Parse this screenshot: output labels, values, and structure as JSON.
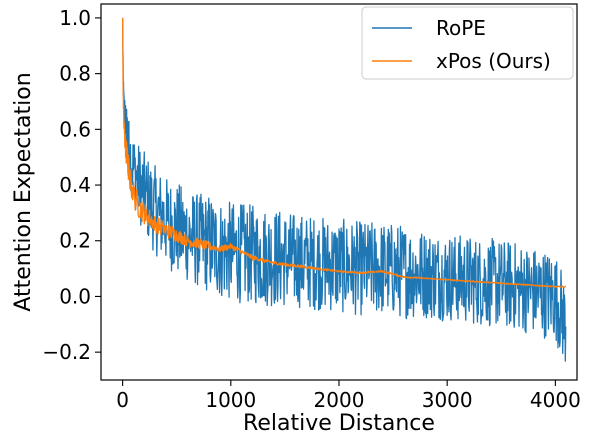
{
  "chart_data": {
    "type": "line",
    "xlabel": "Relative Distance",
    "ylabel": "Attention Expectation",
    "xlim": [
      -200,
      4200
    ],
    "ylim": [
      -0.3,
      1.05
    ],
    "xticks": [
      0,
      1000,
      2000,
      3000,
      4000
    ],
    "xtick_labels": [
      "0",
      "1000",
      "2000",
      "3000",
      "4000"
    ],
    "yticks": [
      -0.2,
      0.0,
      0.2,
      0.4,
      0.6,
      0.8,
      1.0
    ],
    "ytick_labels": [
      "−0.2",
      "0.0",
      "0.2",
      "0.4",
      "0.6",
      "0.8",
      "1.0"
    ],
    "grid": false,
    "legend_position": "top-right",
    "series": [
      {
        "name": "RoPE",
        "color": "#1f77b4",
        "x": [
          0,
          5,
          10,
          20,
          30,
          50,
          75,
          100,
          150,
          200,
          300,
          400,
          500,
          600,
          700,
          800,
          900,
          1000,
          1200,
          1400,
          1600,
          1800,
          2000,
          2200,
          2400,
          2600,
          2800,
          3000,
          3200,
          3400,
          3600,
          3800,
          4000,
          4096
        ],
        "values": [
          1.0,
          0.78,
          0.7,
          0.64,
          0.6,
          0.55,
          0.5,
          0.46,
          0.41,
          0.37,
          0.31,
          0.27,
          0.24,
          0.22,
          0.2,
          0.19,
          0.17,
          0.16,
          0.15,
          0.14,
          0.13,
          0.12,
          0.11,
          0.1,
          0.1,
          0.09,
          0.08,
          0.07,
          0.06,
          0.05,
          0.04,
          0.02,
          0.0,
          -0.1
        ],
        "noise": [
          0.0,
          0.04,
          0.06,
          0.08,
          0.09,
          0.1,
          0.12,
          0.13,
          0.14,
          0.15,
          0.16,
          0.16,
          0.17,
          0.17,
          0.17,
          0.18,
          0.18,
          0.18,
          0.18,
          0.18,
          0.17,
          0.17,
          0.17,
          0.17,
          0.17,
          0.17,
          0.16,
          0.16,
          0.16,
          0.16,
          0.16,
          0.16,
          0.16,
          0.16
        ]
      },
      {
        "name": "xPos (Ours)",
        "color": "#ff7f0e",
        "x": [
          0,
          5,
          10,
          20,
          30,
          50,
          75,
          100,
          150,
          200,
          300,
          400,
          500,
          600,
          700,
          800,
          900,
          1000,
          1200,
          1400,
          1600,
          1800,
          2000,
          2200,
          2400,
          2600,
          2800,
          3000,
          3200,
          3400,
          3600,
          3800,
          4000,
          4096
        ],
        "values": [
          1.0,
          0.72,
          0.63,
          0.57,
          0.53,
          0.47,
          0.41,
          0.37,
          0.32,
          0.3,
          0.26,
          0.24,
          0.22,
          0.2,
          0.19,
          0.18,
          0.17,
          0.18,
          0.14,
          0.12,
          0.11,
          0.1,
          0.09,
          0.085,
          0.09,
          0.07,
          0.065,
          0.06,
          0.055,
          0.05,
          0.045,
          0.04,
          0.035,
          0.035
        ],
        "noise": [
          0.0,
          0.02,
          0.03,
          0.04,
          0.05,
          0.05,
          0.05,
          0.05,
          0.04,
          0.04,
          0.03,
          0.03,
          0.025,
          0.02,
          0.02,
          0.015,
          0.012,
          0.01,
          0.008,
          0.006,
          0.005,
          0.004,
          0.003,
          0.003,
          0.003,
          0.003,
          0.002,
          0.002,
          0.002,
          0.002,
          0.002,
          0.002,
          0.002,
          0.002
        ]
      }
    ]
  }
}
